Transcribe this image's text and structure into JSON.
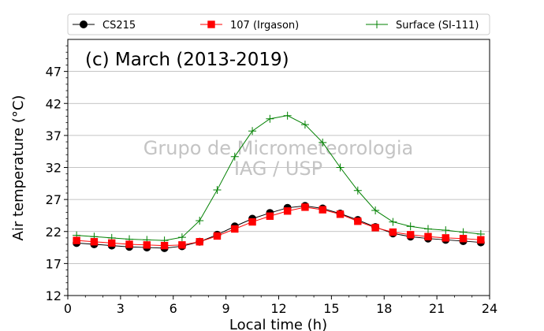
{
  "chart_data": {
    "type": "line",
    "title": "(c) March (2013-2019)",
    "watermark": [
      "Grupo de Micrometeorologia",
      "IAG / USP"
    ],
    "xlabel": "Local time (h)",
    "ylabel": "Air temperature (°C)",
    "xlim": [
      0,
      24
    ],
    "ylim": [
      12,
      52
    ],
    "xticks": [
      0,
      3,
      6,
      9,
      12,
      15,
      18,
      21,
      24
    ],
    "yticks": [
      12,
      17,
      22,
      27,
      32,
      37,
      42,
      47
    ],
    "grid": "horizontal",
    "legend_position": "top, above plot",
    "x": [
      0.5,
      1.5,
      2.5,
      3.5,
      4.5,
      5.5,
      6.5,
      7.5,
      8.5,
      9.5,
      10.5,
      11.5,
      12.5,
      13.5,
      14.5,
      15.5,
      16.5,
      17.5,
      18.5,
      19.5,
      20.5,
      21.5,
      22.5,
      23.5
    ],
    "series": [
      {
        "name": "CS215",
        "color": "#000000",
        "marker": "circle",
        "values": [
          20.2,
          20.0,
          19.8,
          19.6,
          19.5,
          19.4,
          19.7,
          20.4,
          21.5,
          22.8,
          24.0,
          24.9,
          25.7,
          26.0,
          25.6,
          24.8,
          23.8,
          22.7,
          21.7,
          21.2,
          20.9,
          20.7,
          20.5,
          20.3
        ]
      },
      {
        "name": "107 (Irgason)",
        "color": "#ff0000",
        "marker": "square",
        "values": [
          20.6,
          20.4,
          20.2,
          20.0,
          19.9,
          19.8,
          19.9,
          20.4,
          21.3,
          22.4,
          23.5,
          24.4,
          25.2,
          25.8,
          25.4,
          24.7,
          23.6,
          22.6,
          21.9,
          21.5,
          21.2,
          21.0,
          20.9,
          20.7
        ]
      },
      {
        "name": "Surface (SI-111)",
        "color": "#008000",
        "marker": "plus",
        "values": [
          21.4,
          21.2,
          21.0,
          20.8,
          20.7,
          20.6,
          21.1,
          23.7,
          28.5,
          33.7,
          37.7,
          39.6,
          40.1,
          38.7,
          35.9,
          32.0,
          28.4,
          25.3,
          23.5,
          22.8,
          22.4,
          22.2,
          21.9,
          21.6
        ]
      }
    ]
  }
}
